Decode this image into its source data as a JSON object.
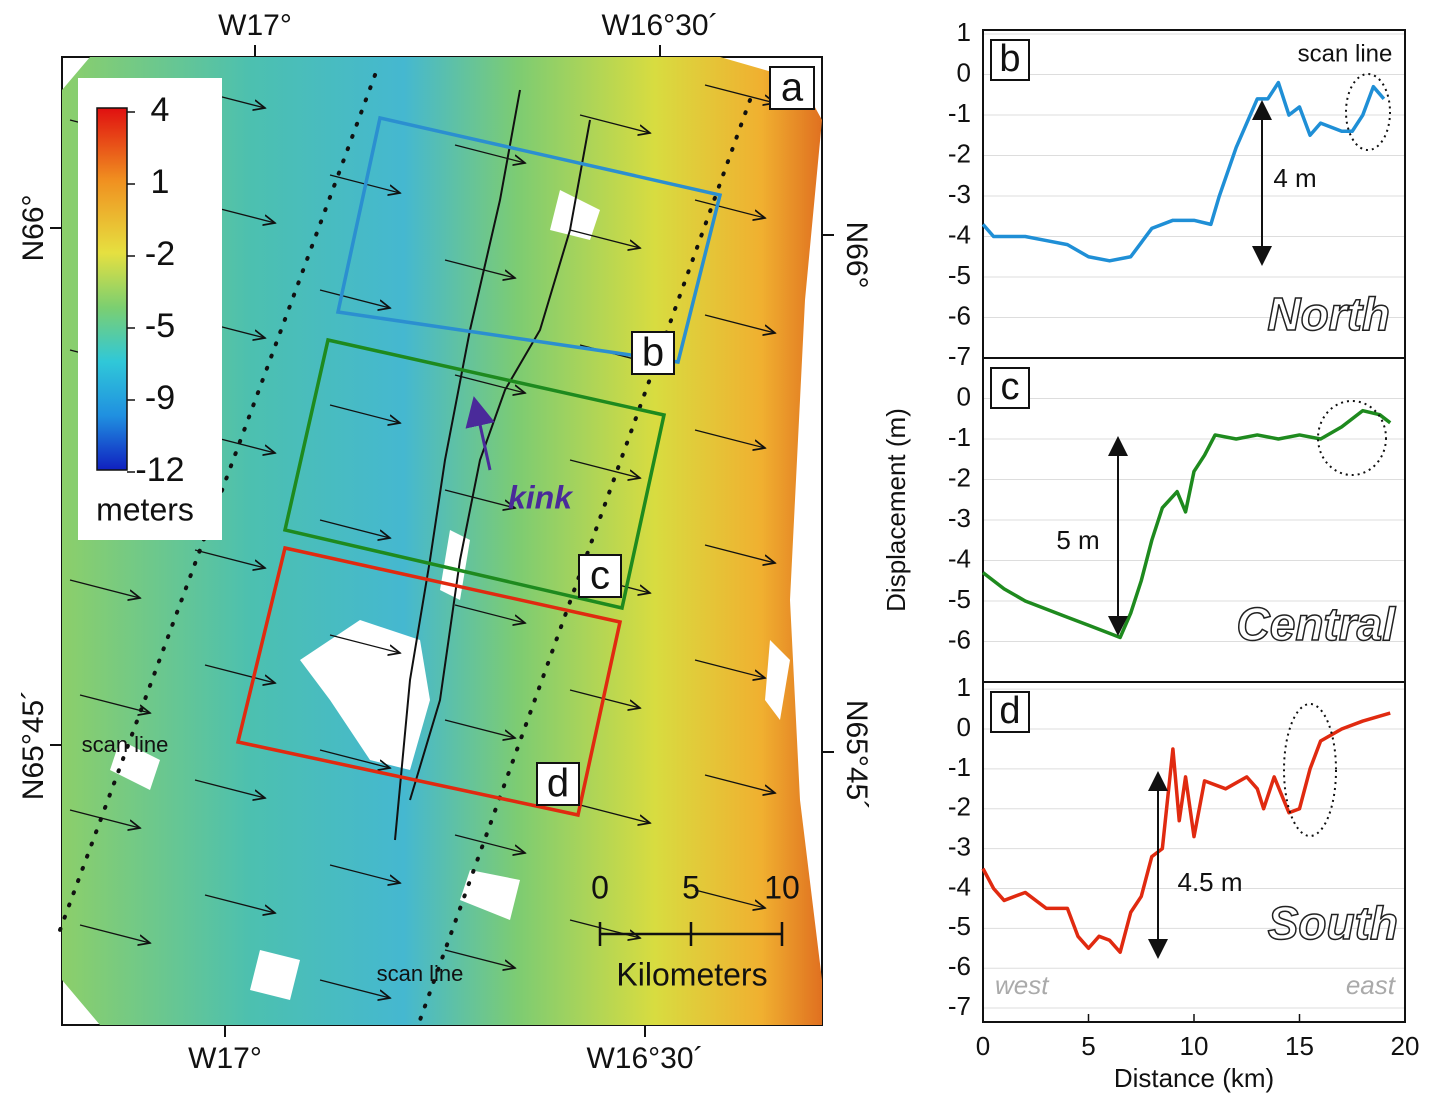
{
  "map": {
    "panel_label": "a",
    "lon_labels": [
      "W17°",
      "W16°30´"
    ],
    "lat_labels": [
      "N66°",
      "N65°45´"
    ],
    "colorbar": {
      "ticks": [
        4,
        1,
        -2,
        -5,
        -9,
        -12
      ],
      "label": "meters"
    },
    "box_labels": [
      "b",
      "c",
      "d"
    ],
    "kink": "kink",
    "scan_line": "scan line",
    "scalebar": {
      "ticks": [
        0,
        5,
        10
      ],
      "label": "Kilometers"
    }
  },
  "chart_data": [
    {
      "type": "line",
      "panel_label": "b",
      "color": "#1f8fd6",
      "x": [
        0,
        0.5,
        1,
        2,
        3,
        4,
        5,
        6,
        7,
        8,
        9,
        10,
        10.8,
        11.2,
        12,
        13,
        13.5,
        14,
        14.5,
        15,
        15.5,
        16,
        17,
        17.5,
        18,
        18.5,
        19
      ],
      "values": [
        -3.7,
        -4,
        -4,
        -4,
        -4.1,
        -4.2,
        -4.5,
        -4.6,
        -4.5,
        -3.8,
        -3.6,
        -3.6,
        -3.7,
        -3,
        -1.8,
        -0.6,
        -0.6,
        -0.2,
        -1,
        -0.8,
        -1.5,
        -1.2,
        -1.4,
        -1.4,
        -1,
        -0.3,
        -0.6
      ],
      "xlim": [
        0,
        20
      ],
      "ylim": [
        -7,
        1.1
      ],
      "yticks": [
        1,
        0,
        -1,
        -2,
        -3,
        -4,
        -5,
        -6,
        -7
      ],
      "annotations": {
        "scan_line": "scan line",
        "offset": "4 m",
        "region": "North"
      }
    },
    {
      "type": "line",
      "panel_label": "c",
      "color": "#1e8a1e",
      "ylabel": "Displacement (m)",
      "x": [
        0,
        1,
        2,
        3,
        4,
        5,
        6,
        6.5,
        7,
        7.5,
        8,
        8.5,
        9.2,
        9.6,
        10,
        10.5,
        11,
        12,
        13,
        14,
        15,
        16,
        17,
        18,
        18.8,
        19.3
      ],
      "values": [
        -4.3,
        -4.7,
        -5,
        -5.2,
        -5.4,
        -5.6,
        -5.8,
        -5.9,
        -5.3,
        -4.5,
        -3.5,
        -2.7,
        -2.3,
        -2.8,
        -1.8,
        -1.4,
        -0.9,
        -1,
        -0.9,
        -1,
        -0.9,
        -1,
        -0.7,
        -0.3,
        -0.4,
        -0.6
      ],
      "xlim": [
        0,
        20
      ],
      "ylim": [
        -7,
        1
      ],
      "yticks": [
        0,
        -1,
        -2,
        -3,
        -4,
        -5,
        -6
      ],
      "annotations": {
        "offset": "5 m",
        "region": "Central"
      }
    },
    {
      "type": "line",
      "panel_label": "d",
      "color": "#e02a10",
      "xlabel": "Distance (km)",
      "x": [
        0,
        0.5,
        1,
        2,
        3,
        4,
        4.5,
        5,
        5.5,
        6,
        6.5,
        7,
        7.5,
        8,
        8.5,
        9,
        9.3,
        9.6,
        10,
        10.5,
        11.5,
        12.5,
        13,
        13.3,
        13.8,
        14.5,
        15,
        15.5,
        16,
        17,
        18,
        19.3
      ],
      "values": [
        -3.5,
        -4,
        -4.3,
        -4.1,
        -4.5,
        -4.5,
        -5.2,
        -5.5,
        -5.2,
        -5.3,
        -5.6,
        -4.6,
        -4.2,
        -3.2,
        -3,
        -0.5,
        -2.3,
        -1.2,
        -2.7,
        -1.3,
        -1.5,
        -1.2,
        -1.5,
        -2,
        -1.2,
        -2.1,
        -2,
        -1,
        -0.3,
        0,
        0.2,
        0.4
      ],
      "xlim": [
        0,
        20
      ],
      "xticks": [
        0,
        5,
        10,
        15,
        20
      ],
      "ylim": [
        -7.35,
        1.18
      ],
      "yticks": [
        1,
        0,
        -1,
        -2,
        -3,
        -4,
        -5,
        -6,
        -7
      ],
      "annotations": {
        "offset": "4.5 m",
        "region": "South",
        "west": "west",
        "east": "east"
      }
    }
  ]
}
